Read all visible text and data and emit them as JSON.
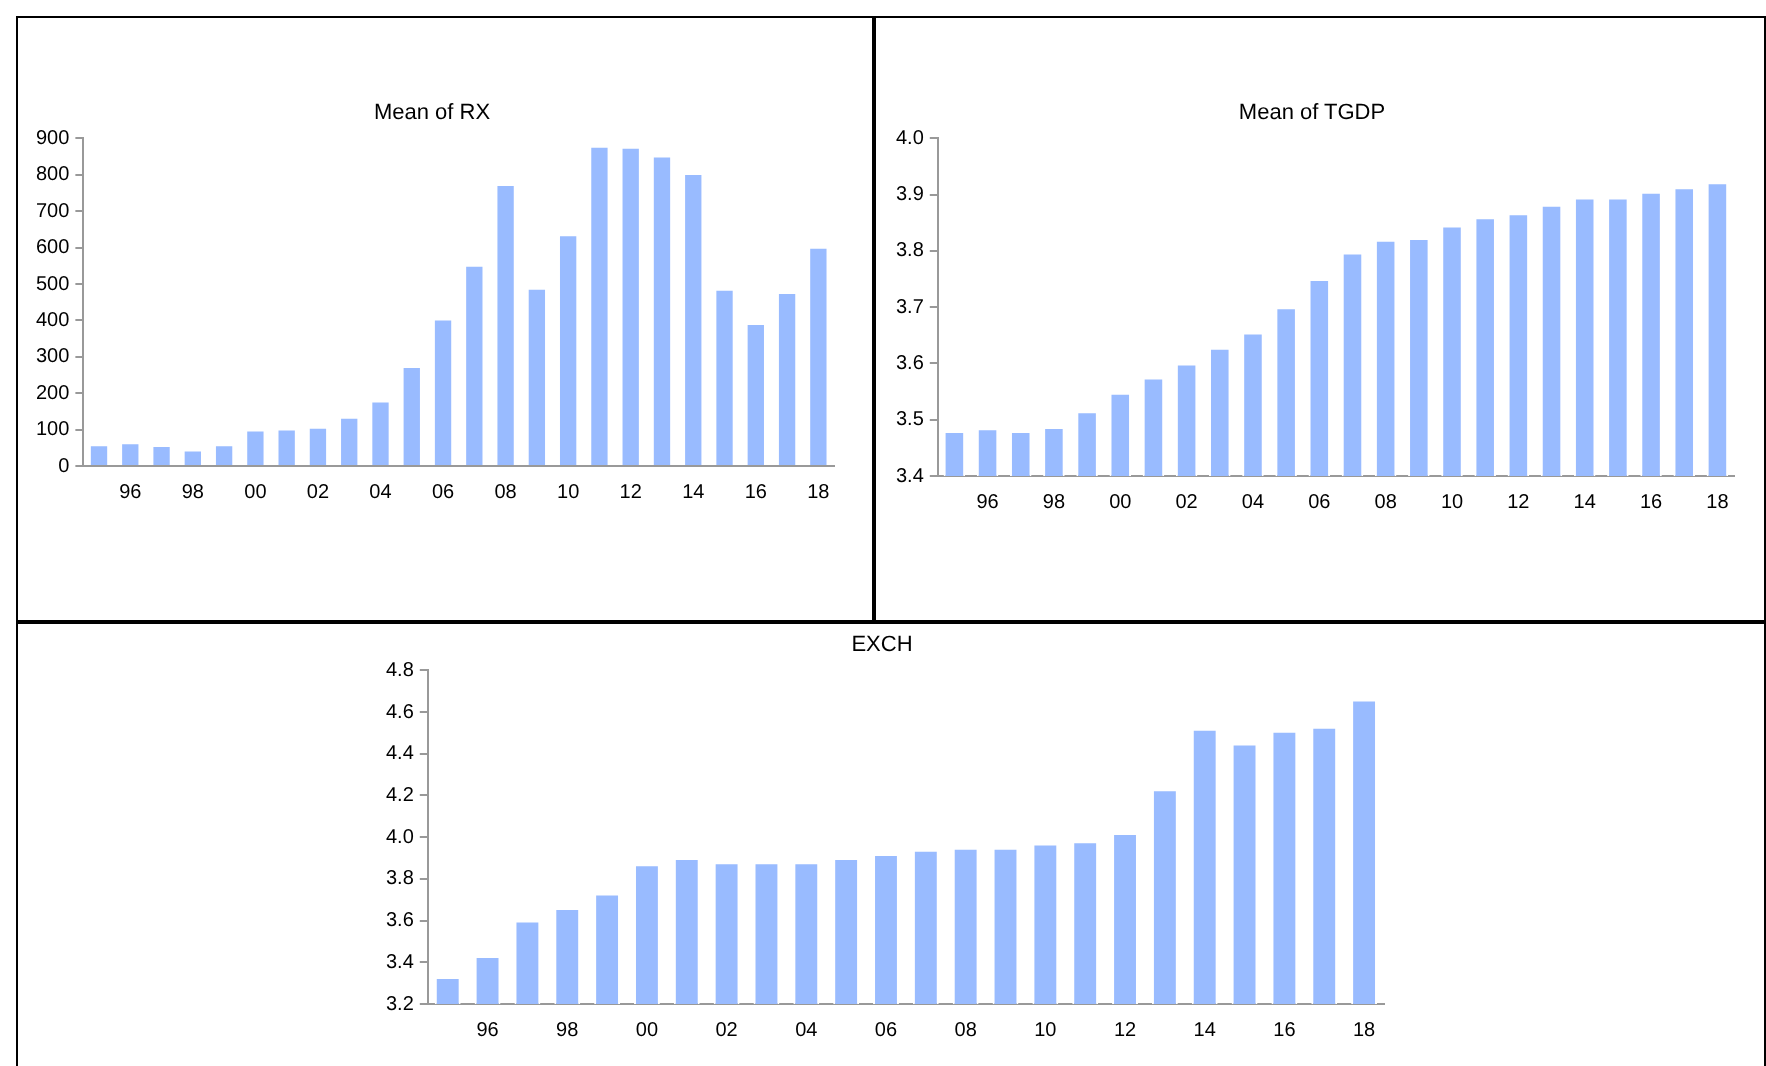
{
  "chart_data": [
    {
      "type": "bar",
      "title": "Mean of RX",
      "categories": [
        null,
        "96",
        null,
        "98",
        null,
        "00",
        null,
        "02",
        null,
        "04",
        null,
        "06",
        null,
        "08",
        null,
        "10",
        null,
        "12",
        null,
        "14",
        null,
        "16",
        null,
        "18"
      ],
      "series": [
        {
          "color": "#99bbff",
          "values": [
            60,
            65,
            58,
            45,
            60,
            100,
            103,
            108,
            135,
            180,
            275,
            405,
            553,
            775,
            490,
            637,
            880,
            877,
            853,
            805,
            487,
            393,
            478,
            602
          ]
        }
      ],
      "ylim": [
        0,
        900
      ],
      "yticks": [
        0,
        100,
        200,
        300,
        400,
        500,
        600,
        700,
        800,
        900
      ],
      "grid": false,
      "legend": false
    },
    {
      "type": "bar",
      "title": "Mean of TGDP",
      "categories": [
        null,
        "96",
        null,
        "98",
        null,
        "00",
        null,
        "02",
        null,
        "04",
        null,
        "06",
        null,
        "08",
        null,
        "10",
        null,
        "12",
        null,
        "14",
        null,
        "16",
        null,
        "18"
      ],
      "series": [
        {
          "color": "#99bbff",
          "values": [
            3.48,
            3.485,
            3.48,
            3.487,
            3.515,
            3.548,
            3.575,
            3.6,
            3.628,
            3.655,
            3.7,
            3.75,
            3.797,
            3.82,
            3.823,
            3.845,
            3.86,
            3.867,
            3.882,
            3.895,
            3.895,
            3.905,
            3.913,
            3.922
          ]
        }
      ],
      "ylim": [
        3.4,
        4.0
      ],
      "yticks": [
        3.4,
        3.5,
        3.6,
        3.7,
        3.8,
        3.9,
        {
          "value": 4.0,
          "label": "4.0"
        }
      ],
      "grid": false,
      "legend": false
    },
    {
      "type": "bar",
      "title": "EXCH",
      "categories": [
        null,
        "96",
        null,
        "98",
        null,
        "00",
        null,
        "02",
        null,
        "04",
        null,
        "06",
        null,
        "08",
        null,
        "10",
        null,
        "12",
        null,
        "14",
        null,
        "16",
        null,
        "18"
      ],
      "series": [
        {
          "color": "#99bbff",
          "values": [
            3.33,
            3.43,
            3.6,
            3.66,
            3.73,
            3.87,
            3.9,
            3.88,
            3.88,
            3.88,
            3.9,
            3.92,
            3.94,
            3.95,
            3.95,
            3.97,
            3.98,
            4.02,
            4.23,
            4.52,
            4.45,
            4.51,
            4.53,
            4.66
          ]
        }
      ],
      "ylim": [
        3.2,
        4.8
      ],
      "yticks": [
        3.2,
        3.4,
        3.6,
        3.8,
        {
          "value": 4.0,
          "label": "4.0"
        },
        4.2,
        4.4,
        4.6,
        4.8
      ],
      "grid": false,
      "legend": false
    }
  ]
}
